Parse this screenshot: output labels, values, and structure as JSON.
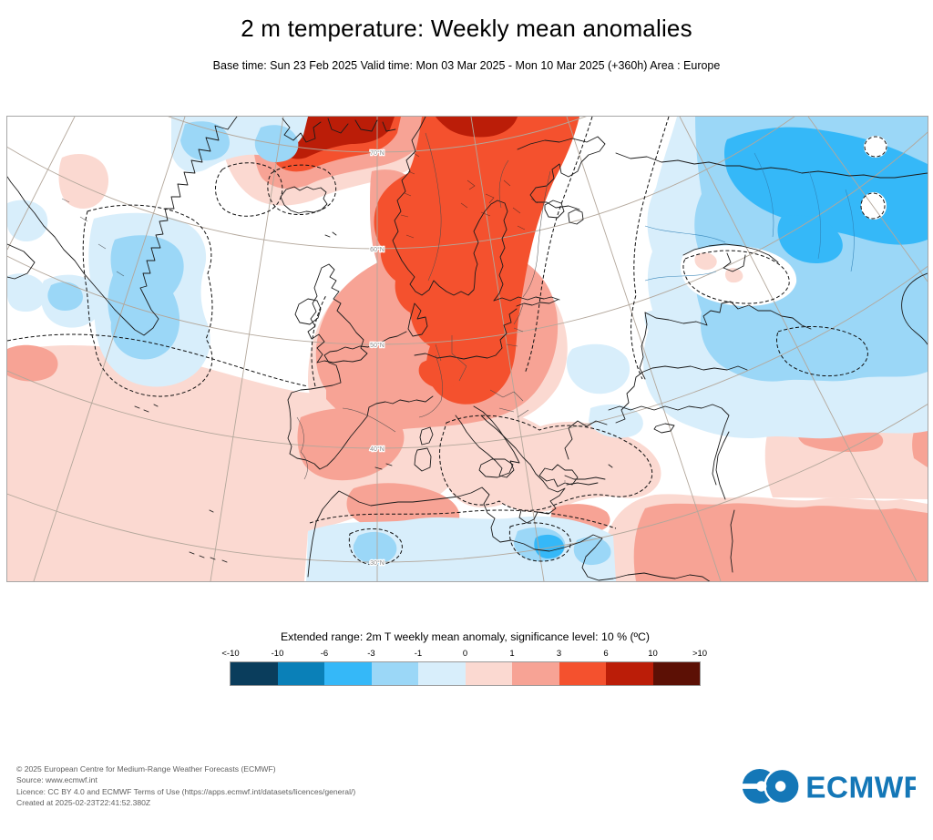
{
  "title": "2 m temperature: Weekly mean anomalies",
  "subtitle": "Base time: Sun 23 Feb 2025 Valid time: Mon 03 Mar 2025 - Mon 10 Mar 2025 (+360h) Area : Europe",
  "map": {
    "latitude_labels": [
      "70°N",
      "60°N",
      "50°N",
      "40°N",
      "30°N"
    ],
    "colors": {
      "warm_weak": "#fbd9d1",
      "warm_mid": "#f7a395",
      "warm_strong": "#f4512e",
      "warm_extreme": "#bb1d08",
      "cold_weak": "#d8eefb",
      "cold_mid": "#9bd7f7",
      "cold_strong": "#35b8f8",
      "graticule": "#b3a79b",
      "coastline": "#1b1b1b"
    }
  },
  "legend": {
    "title": "Extended range: 2m T weekly mean anomaly, significance level: 10 % (ºC)",
    "tick_labels": [
      "<-10",
      "-10",
      "-6",
      "-3",
      "-1",
      "0",
      "1",
      "3",
      "6",
      "10",
      ">10"
    ],
    "colors": [
      "#0a3d5c",
      "#0a80b8",
      "#35b8f8",
      "#9bd7f7",
      "#d8eefb",
      "#fbd9d1",
      "#f7a395",
      "#f4512e",
      "#bb1d08",
      "#5c1005"
    ]
  },
  "footer": {
    "lines": [
      "© 2025 European Centre for Medium-Range Weather Forecasts (ECMWF)",
      "Source: www.ecmwf.int",
      "Licence: CC BY 4.0 and ECMWF Terms of Use (https://apps.ecmwf.int/datasets/licences/general/)",
      "Created at 2025-02-23T22:41:52.380Z"
    ]
  },
  "logo": {
    "text": "ECMWF",
    "color": "#1477b7"
  }
}
